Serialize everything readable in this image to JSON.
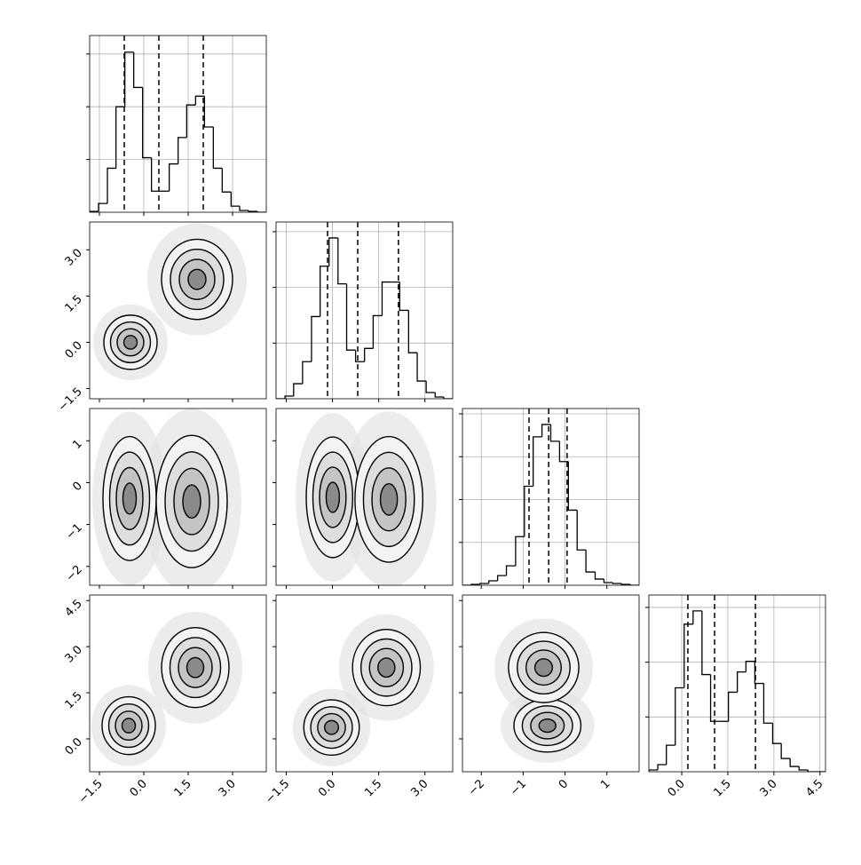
{
  "chart_data": {
    "type": "corner",
    "variables": [
      {
        "range": [
          -1.83,
          4.14
        ],
        "ticks": [
          {
            "value": -1.5,
            "label": "−1.5"
          },
          {
            "value": 0,
            "label": "0.0"
          },
          {
            "value": 1.5,
            "label": "1.5"
          },
          {
            "value": 3,
            "label": "3.0"
          }
        ],
        "bins": [
          -1.83,
          -1.53,
          -1.23,
          -0.94,
          -0.64,
          -0.34,
          -0.04,
          0.26,
          0.56,
          0.86,
          1.16,
          1.45,
          1.75,
          2.05,
          2.35,
          2.65,
          2.95,
          3.24,
          3.54,
          3.84,
          4.14
        ],
        "counts": [
          8,
          83,
          417,
          1000,
          1517,
          1183,
          517,
          200,
          200,
          458,
          708,
          1017,
          1100,
          808,
          417,
          192,
          58,
          17,
          8,
          0
        ],
        "quantiles": [
          -0.66,
          0.51,
          2.01
        ],
        "count_lim": [
          0,
          1675
        ],
        "count_ticks": [
          500,
          1000,
          1500
        ]
      },
      {
        "range": [
          -1.83,
          3.9
        ],
        "ticks": [
          {
            "value": -1.5,
            "label": "−1.5"
          },
          {
            "value": 0,
            "label": "0.0"
          },
          {
            "value": 1.5,
            "label": "1.5"
          },
          {
            "value": 3,
            "label": "3.0"
          }
        ],
        "bins": [
          -1.83,
          -1.54,
          -1.26,
          -0.97,
          -0.68,
          -0.4,
          -0.11,
          0.18,
          0.46,
          0.75,
          1.04,
          1.32,
          1.61,
          1.89,
          2.18,
          2.47,
          2.75,
          3.04,
          3.33,
          3.61,
          3.9
        ],
        "counts": [
          0,
          24,
          135,
          333,
          738,
          1190,
          1444,
          1032,
          437,
          333,
          452,
          746,
          1048,
          1048,
          794,
          413,
          159,
          56,
          16,
          0
        ],
        "quantiles": [
          -0.16,
          0.82,
          2.14
        ],
        "count_lim": [
          0,
          1587
        ],
        "count_ticks": [
          500,
          1000,
          1500
        ]
      },
      {
        "range": [
          -2.45,
          1.77
        ],
        "ticks": [
          {
            "value": -2,
            "label": "−2"
          },
          {
            "value": -1,
            "label": "−1"
          },
          0,
          1
        ],
        "bins": [
          -2.45,
          -2.24,
          -2.03,
          -1.82,
          -1.61,
          -1.4,
          -1.18,
          -0.97,
          -0.76,
          -0.55,
          -0.34,
          -0.13,
          0.08,
          0.29,
          0.5,
          0.72,
          0.93,
          1.14,
          1.35,
          1.56,
          1.77
        ],
        "counts": [
          0,
          10,
          21,
          52,
          113,
          227,
          567,
          1155,
          1732,
          1876,
          1680,
          1443,
          876,
          412,
          155,
          72,
          31,
          21,
          10,
          0
        ],
        "quantiles": [
          -0.86,
          -0.39,
          0.05
        ],
        "count_lim": [
          0,
          2062
        ],
        "count_ticks": [
          500,
          1000,
          1500,
          2000
        ]
      },
      {
        "range": [
          -1.07,
          4.68
        ],
        "ticks": [
          {
            "value": 0,
            "label": "0.0"
          },
          {
            "value": 1.5,
            "label": "1.5"
          },
          {
            "value": 3,
            "label": "3.0"
          },
          {
            "value": 4.5,
            "label": "4.5"
          }
        ],
        "bins": [
          -1.07,
          -0.78,
          -0.5,
          -0.21,
          0.08,
          0.37,
          0.66,
          0.94,
          1.23,
          1.52,
          1.81,
          2.09,
          2.38,
          2.67,
          2.96,
          3.24,
          3.53,
          3.82,
          4.11,
          4.39,
          4.68
        ],
        "counts": [
          16,
          65,
          242,
          766,
          1347,
          1468,
          887,
          460,
          460,
          726,
          911,
          1008,
          806,
          444,
          258,
          121,
          48,
          16,
          0,
          0
        ],
        "quantiles": [
          0.2,
          1.07,
          2.4
        ],
        "count_lim": [
          0,
          1613
        ],
        "count_ticks": [
          500,
          1000,
          1500
        ]
      }
    ],
    "panels": [
      [],
      [
        {
          "clusters": [
            {
              "x": -0.45,
              "y": 0.0,
              "sx": 0.45,
              "sy": 0.44
            },
            {
              "x": 1.8,
              "y": 2.04,
              "sx": 0.6,
              "sy": 0.65
            }
          ]
        }
      ],
      [
        {
          "clusters": [
            {
              "x": -0.48,
              "y": -0.38,
              "sx": 0.45,
              "sy": 0.74
            },
            {
              "x": 1.62,
              "y": -0.45,
              "sx": 0.6,
              "sy": 0.79
            }
          ]
        },
        {
          "clusters": [
            {
              "x": 0.01,
              "y": -0.35,
              "sx": 0.43,
              "sy": 0.72
            },
            {
              "x": 1.83,
              "y": -0.4,
              "sx": 0.55,
              "sy": 0.75
            }
          ]
        }
      ],
      [
        {
          "clusters": [
            {
              "x": -0.51,
              "y": 0.43,
              "sx": 0.45,
              "sy": 0.47
            },
            {
              "x": 1.74,
              "y": 2.32,
              "sx": 0.57,
              "sy": 0.65
            }
          ]
        },
        {
          "clusters": [
            {
              "x": -0.03,
              "y": 0.37,
              "sx": 0.45,
              "sy": 0.45
            },
            {
              "x": 1.75,
              "y": 2.32,
              "sx": 0.55,
              "sy": 0.62
            }
          ]
        },
        {
          "clusters": [
            {
              "x": -0.42,
              "y": 0.43,
              "sx": 0.4,
              "sy": 0.43
            },
            {
              "x": -0.51,
              "y": 2.32,
              "sx": 0.42,
              "sy": 0.57
            }
          ]
        }
      ]
    ]
  }
}
